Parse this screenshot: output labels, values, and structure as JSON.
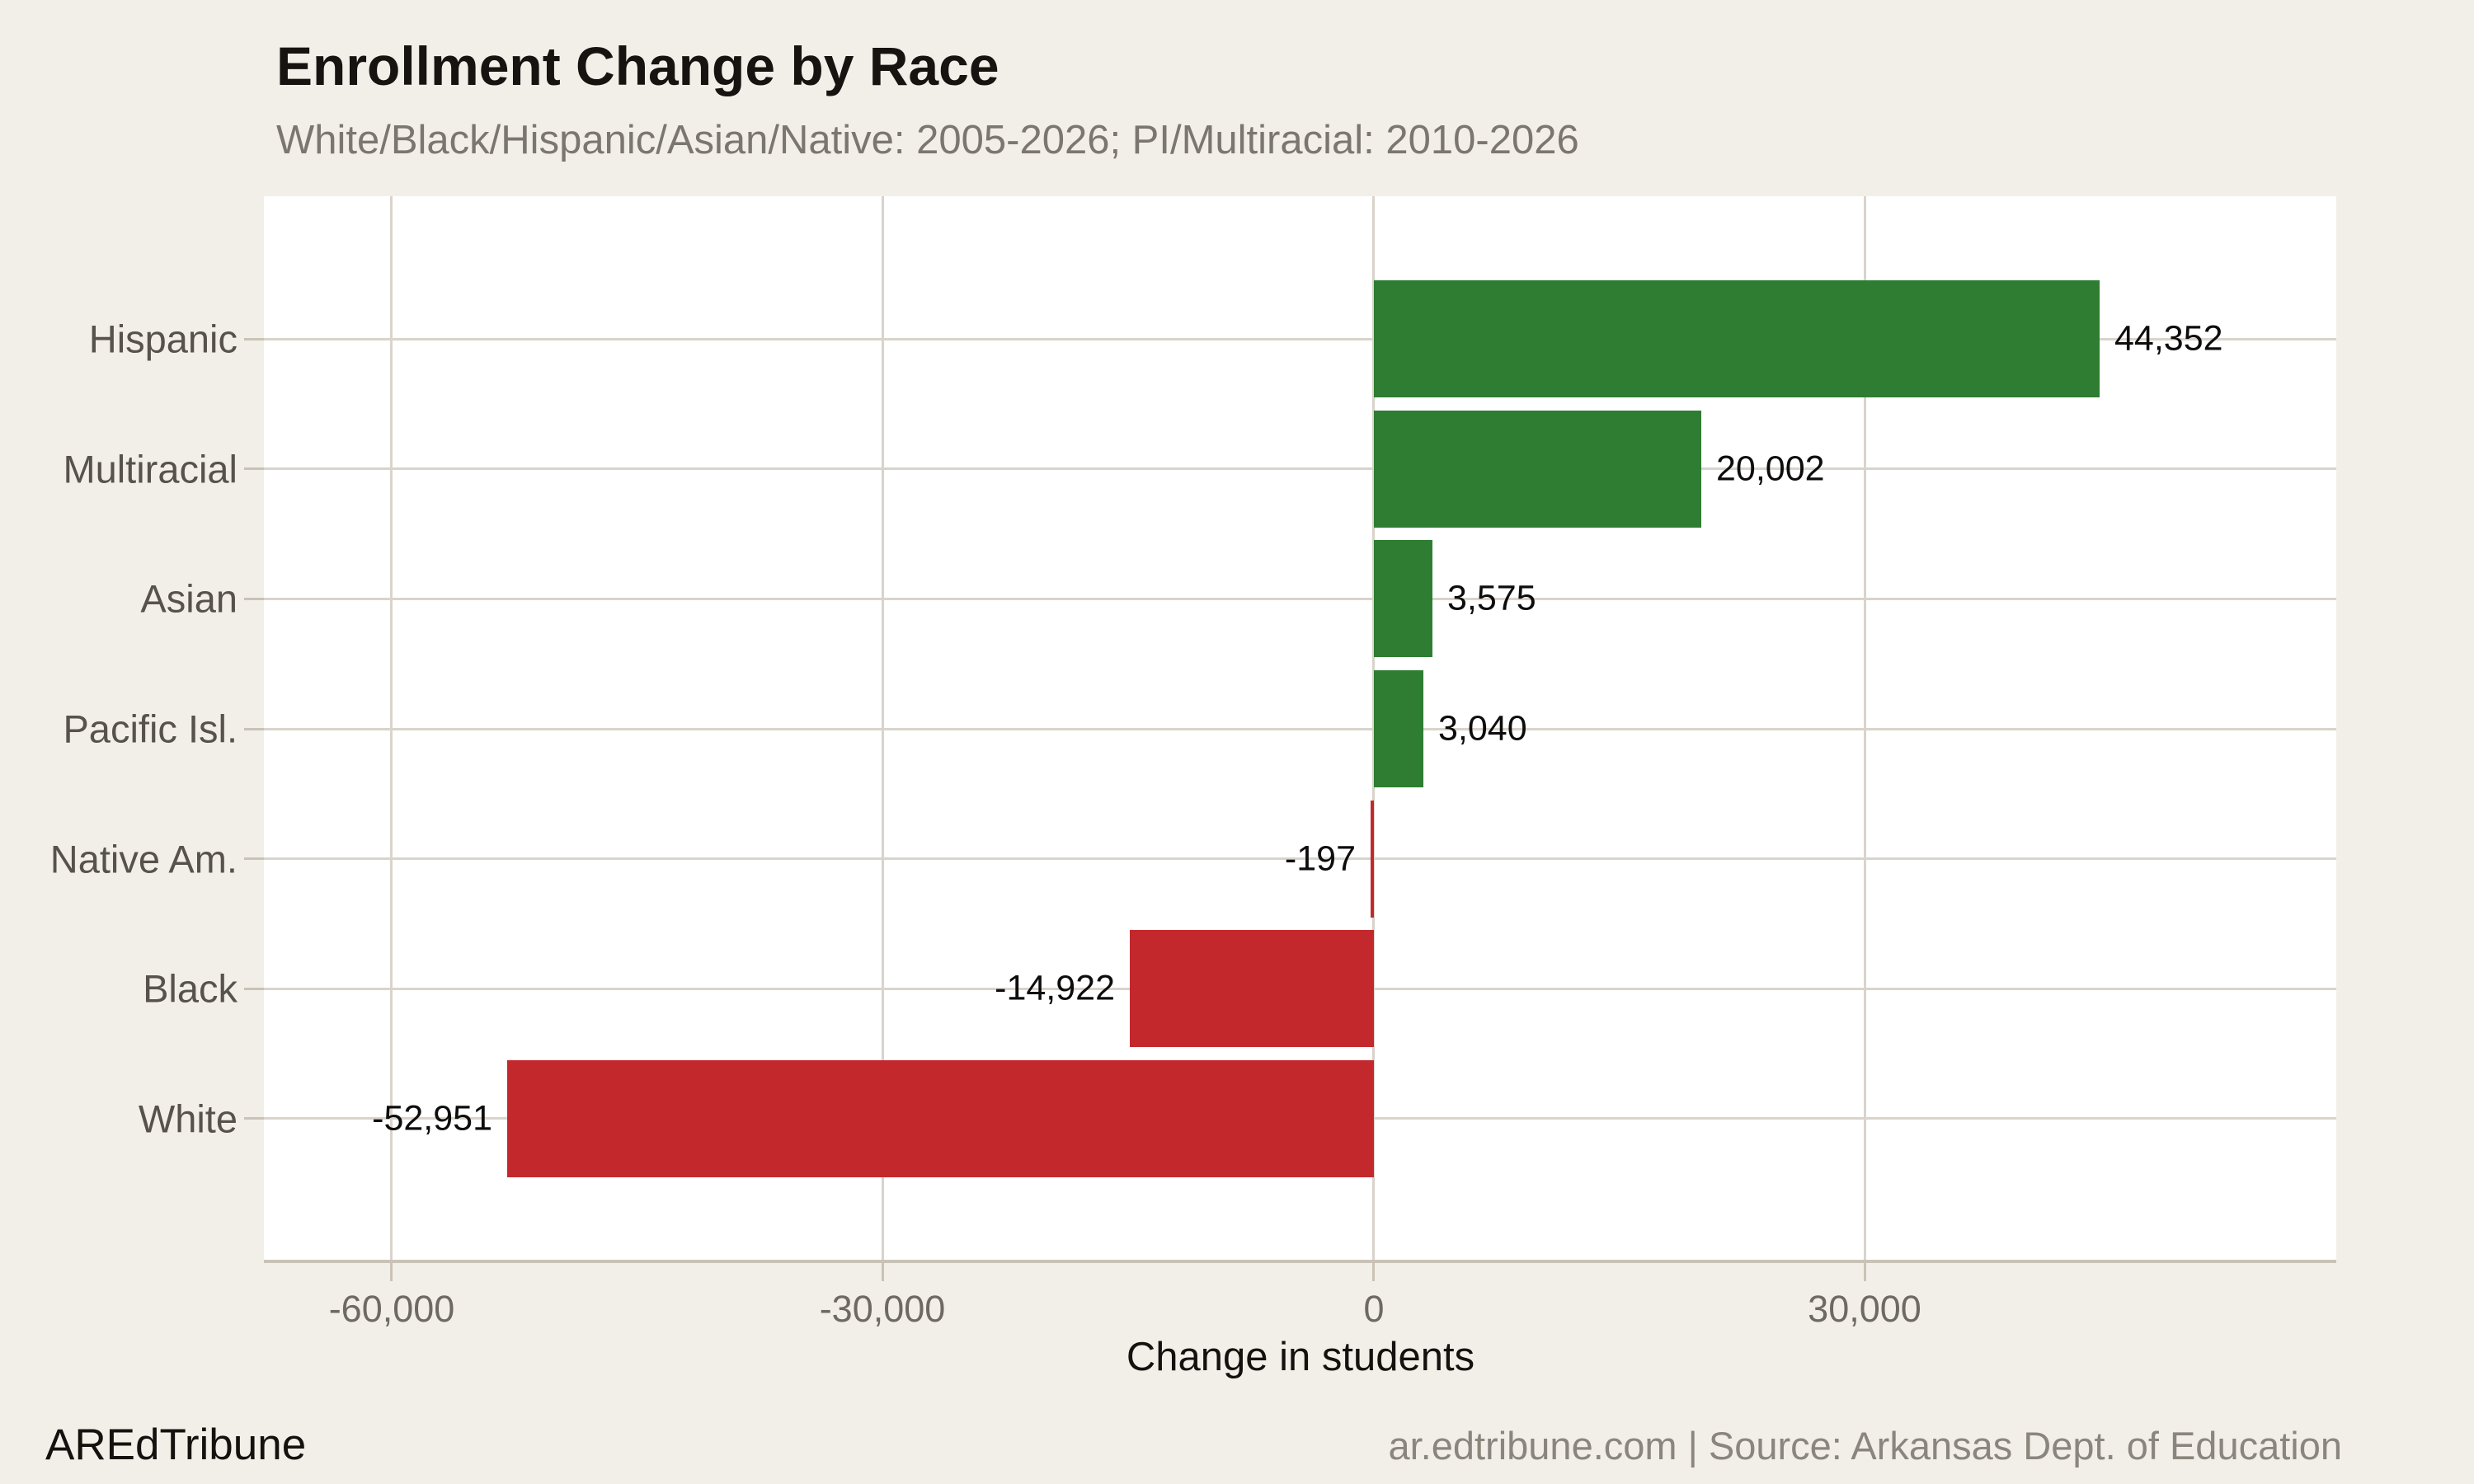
{
  "header": {
    "title": "Enrollment Change by Race",
    "subtitle": "White/Black/Hispanic/Asian/Native: 2005-2026; PI/Multiracial: 2010-2026"
  },
  "chart_data": {
    "type": "bar",
    "orientation": "horizontal",
    "title": "Enrollment Change by Race",
    "subtitle": "White/Black/Hispanic/Asian/Native: 2005-2026; PI/Multiracial: 2010-2026",
    "categories": [
      "Hispanic",
      "Multiracial",
      "Asian",
      "Pacific Isl.",
      "Native Am.",
      "Black",
      "White"
    ],
    "values": [
      44352,
      20002,
      3575,
      3040,
      -197,
      -14922,
      -52951
    ],
    "value_labels": [
      "44,352",
      "20,002",
      "3,575",
      "3,040",
      "-197",
      "-14,922",
      "-52,951"
    ],
    "xlabel": "Change in students",
    "ylabel": "",
    "x_ticks": [
      -60000,
      -30000,
      0,
      30000
    ],
    "x_tick_labels": [
      "-60,000",
      "-30,000",
      "0",
      "30,000"
    ],
    "xlim": [
      -67800,
      58800
    ],
    "grid": true,
    "legend": "none",
    "colors": {
      "positive": "#2e7d32",
      "negative": "#c3282d",
      "plot_background": "#ffffff",
      "page_background": "#f2efe9",
      "gridline": "#d9d4cb",
      "axis": "#c9c3b7"
    }
  },
  "footer": {
    "brand": "AREdTribune",
    "source": "ar.edtribune.com | Source: Arkansas Dept. of Education"
  }
}
